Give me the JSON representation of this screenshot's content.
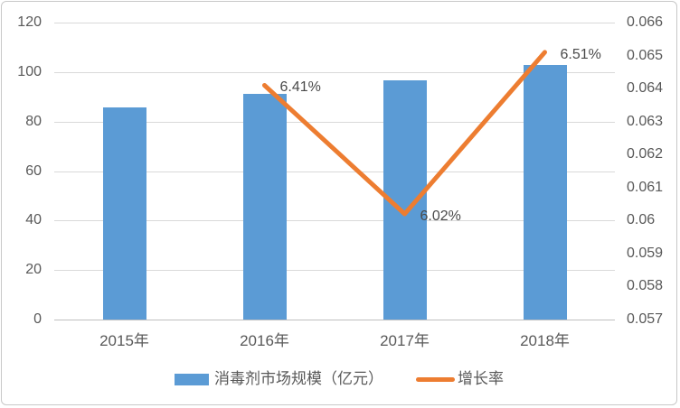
{
  "chart_data": {
    "type": "bar",
    "subtype": "combo-bar-line",
    "title": "",
    "categories": [
      "2015年",
      "2016年",
      "2017年",
      "2018年"
    ],
    "series": [
      {
        "name": "消毒剂市场规模（亿元）",
        "type": "bar",
        "axis": "left",
        "color": "#5B9BD5",
        "values": [
          85.6,
          91.1,
          96.6,
          102.9
        ]
      },
      {
        "name": "增长率",
        "type": "line",
        "axis": "right",
        "color": "#ED7D31",
        "values": [
          null,
          0.0641,
          0.0602,
          0.0651
        ],
        "point_labels": [
          null,
          "6.41%",
          "6.02%",
          "6.51%"
        ]
      }
    ],
    "left_axis": {
      "min": 0,
      "max": 120,
      "step": 20,
      "ticks": [
        "0",
        "20",
        "40",
        "60",
        "80",
        "100",
        "120"
      ]
    },
    "right_axis": {
      "min": 0.057,
      "max": 0.066,
      "step": 0.001,
      "ticks": [
        "0.057",
        "0.058",
        "0.059",
        "0.06",
        "0.061",
        "0.062",
        "0.063",
        "0.064",
        "0.065",
        "0.066"
      ]
    },
    "grid": true,
    "legend_position": "bottom",
    "legend": [
      {
        "label": "消毒剂市场规模（亿元）",
        "swatch": "bar",
        "color": "#5B9BD5"
      },
      {
        "label": "增长率",
        "swatch": "line",
        "color": "#ED7D31"
      }
    ]
  },
  "colors": {
    "bar": "#5B9BD5",
    "line": "#ED7D31",
    "gridline": "#d9d9d9",
    "axis_line": "#bfbfbf",
    "label_text": "#595959",
    "canvas_border": "#c8c8c8"
  }
}
